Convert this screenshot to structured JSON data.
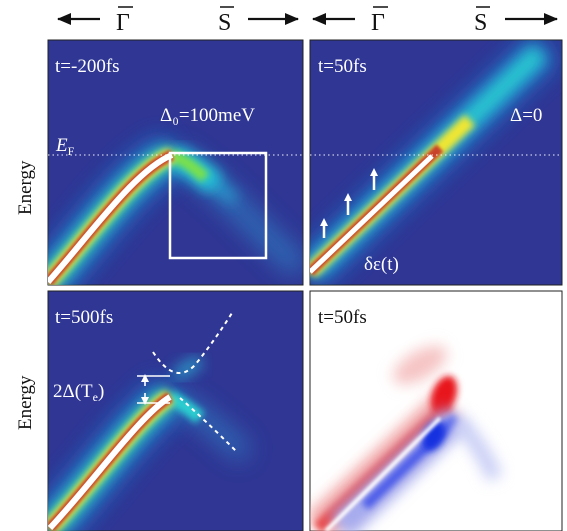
{
  "header": {
    "left_gamma": "Γ",
    "left_s": "S",
    "right_gamma": "Γ",
    "right_s": "S"
  },
  "y_axis": {
    "top_label": "Energy",
    "bottom_label": "Energy"
  },
  "panels": {
    "top_left": {
      "time": "t=-200fs",
      "gap_label": "Δ₀=100meV",
      "fermi_label": "E",
      "fermi_sub": "F"
    },
    "top_right": {
      "time": "t=50fs",
      "gap_label": "Δ=0",
      "shift_label": "δε(t)"
    },
    "bottom_left": {
      "time": "t=500fs",
      "gap_label": "2Δ(T",
      "gap_sub": "e",
      "gap_close": ")"
    },
    "bottom_right": {
      "time": "t=50fs"
    }
  },
  "colors": {
    "panel_background": "#2f3694",
    "band_core": "#fff5f0",
    "difference_positive": "#e8141e",
    "difference_negative": "#1530e0",
    "overlay": "#ffffff"
  }
}
